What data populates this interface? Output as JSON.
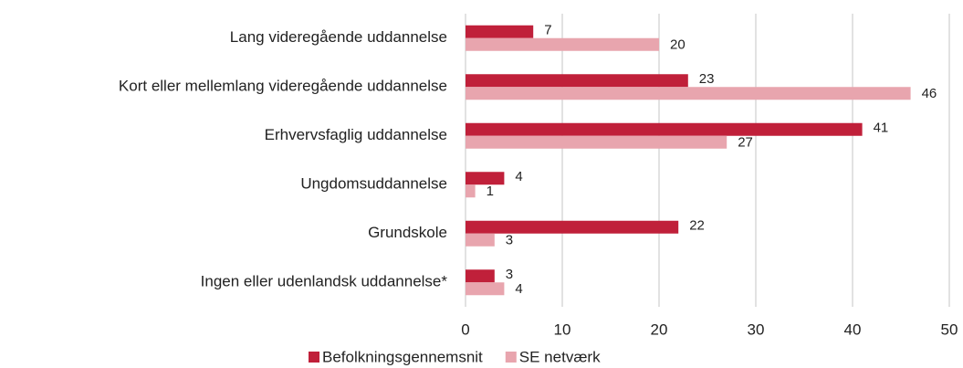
{
  "chart_data": {
    "type": "bar",
    "orientation": "horizontal",
    "categories": [
      "Lang videregående uddannelse",
      "Kort eller mellemlang videregående uddannelse",
      "Erhvervsfaglig uddannelse",
      "Ungdomsuddannelse",
      "Grundskole",
      "Ingen eller udenlandsk uddannelse*"
    ],
    "series": [
      {
        "name": "Befolkningsgennemsnit",
        "color": "#c0203a",
        "values": [
          7,
          23,
          41,
          4,
          22,
          3
        ]
      },
      {
        "name": "SE netværk",
        "color": "#e8a5ae",
        "values": [
          20,
          46,
          27,
          1,
          3,
          4
        ]
      }
    ],
    "xlim": [
      0,
      50
    ],
    "xticks": [
      0,
      10,
      20,
      30,
      40,
      50
    ],
    "grid": true,
    "legend": "bottom"
  }
}
